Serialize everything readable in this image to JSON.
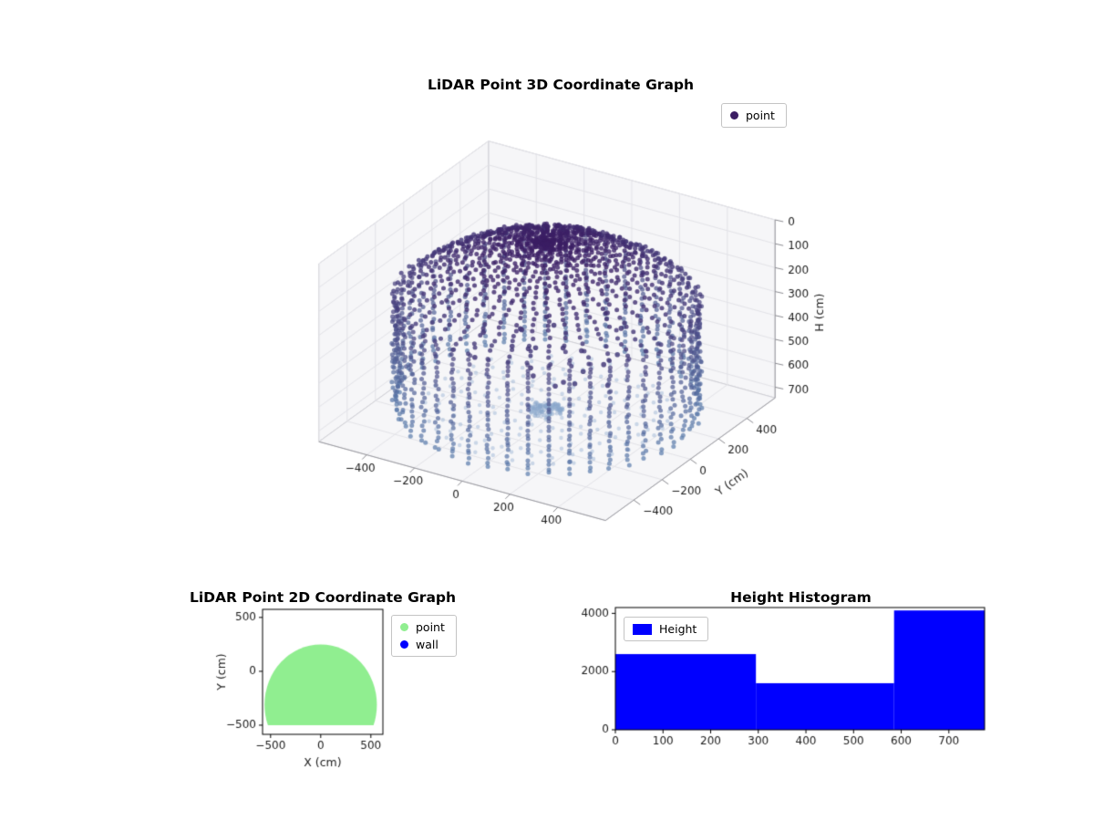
{
  "figure": {
    "background": "#ffffff"
  },
  "chart_data": [
    {
      "id": "lidar-3d",
      "type": "scatter",
      "projection": "3d",
      "title": "LiDAR Point 3D Coordinate Graph",
      "legend": {
        "position": "upper right",
        "entries": [
          {
            "label": "point",
            "color": "#3b1d63",
            "marker": "circle"
          }
        ]
      },
      "axes": {
        "x": {
          "label": "",
          "ticks": [
            -400,
            -200,
            0,
            200,
            400
          ],
          "lim": [
            -600,
            600
          ]
        },
        "y": {
          "label": "Y (cm)",
          "ticks": [
            -400,
            -200,
            0,
            200,
            400
          ],
          "lim": [
            -600,
            600
          ]
        },
        "h": {
          "label": "H (cm)",
          "ticks": [
            0,
            100,
            200,
            300,
            400,
            500,
            600,
            700
          ],
          "lim": [
            0,
            745
          ],
          "inverted": true
        }
      },
      "grid": true,
      "cloud": {
        "description": "dome ceiling + cylindrical wall + floor point cloud, colored by height",
        "wall_radius": 550,
        "dome_cap_height": 230,
        "wall_bottom_h": 700,
        "floor_h": 700,
        "azimuth_columns": 46,
        "dome_rings": 24,
        "wall_rows": 24,
        "floor_rings": 9,
        "color_low_h": "#3b1d63",
        "color_high_h": "#5d7fae",
        "floor_color": "#8aa8cc",
        "point_alpha": 0.8,
        "point_radius_px": 2.5
      }
    },
    {
      "id": "lidar-2d",
      "type": "scatter",
      "title": "LiDAR Point 2D Coordinate Graph",
      "xlabel": "X (cm)",
      "ylabel": "Y (cm)",
      "xticks": [
        -500,
        0,
        500
      ],
      "yticks": [
        500,
        0,
        -500
      ],
      "xlim": [
        -580,
        620
      ],
      "ylim": [
        -585,
        575
      ],
      "legend": {
        "position": "outside right",
        "entries": [
          {
            "label": "point",
            "color": "#90ee90",
            "marker": "circle"
          },
          {
            "label": "wall",
            "color": "#0000ff",
            "marker": "circle"
          }
        ]
      },
      "point_region": {
        "shape": "circle-clipped",
        "cx": 0,
        "cy": -310,
        "r": 560,
        "clip_y_min": -500,
        "color": "#90ee90"
      }
    },
    {
      "id": "height-histogram",
      "type": "bar",
      "title": "Height Histogram",
      "legend": {
        "position": "upper left",
        "entries": [
          {
            "label": "Height",
            "color": "#0000ff",
            "marker": "patch"
          }
        ]
      },
      "bin_edges": [
        0,
        295,
        585,
        775
      ],
      "counts": [
        2600,
        1600,
        4100
      ],
      "xticks": [
        0,
        100,
        200,
        300,
        400,
        500,
        600,
        700
      ],
      "yticks": [
        0,
        2000,
        4000
      ],
      "xlim": [
        0,
        775
      ],
      "ylim": [
        0,
        4200
      ],
      "bar_color": "#0000ff"
    }
  ]
}
